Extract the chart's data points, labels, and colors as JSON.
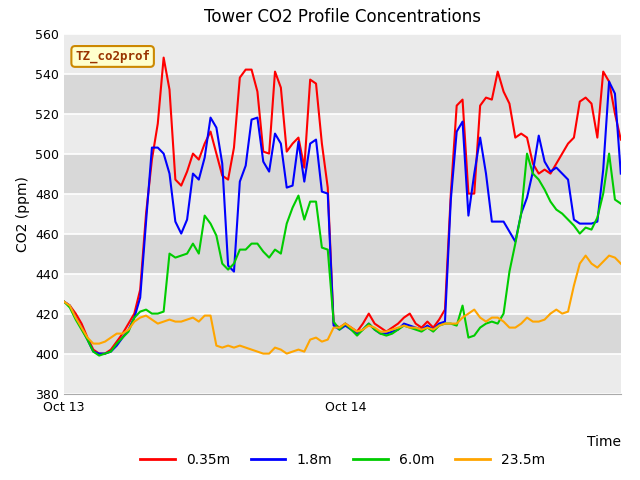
{
  "title": "Tower CO2 Profile Concentrations",
  "ylabel": "CO2 (ppm)",
  "xlabel": "Time",
  "ylim": [
    380,
    560
  ],
  "yticks": [
    380,
    400,
    420,
    440,
    460,
    480,
    500,
    520,
    540,
    560
  ],
  "plot_bg_color": "#d8d8d8",
  "grid_color": "#e8e8e8",
  "legend_label": "TZ_co2prof",
  "series_labels": [
    "0.35m",
    "1.8m",
    "6.0m",
    "23.5m"
  ],
  "series_colors": [
    "#ff0000",
    "#0000ff",
    "#00cc00",
    "#ffa500"
  ],
  "n_points": 96,
  "x_tick_positions": [
    0,
    48,
    95
  ],
  "x_tick_labels": [
    "Oct 13",
    "Oct 14",
    ""
  ],
  "red_data": [
    426,
    424,
    420,
    415,
    408,
    402,
    400,
    400,
    402,
    406,
    410,
    415,
    420,
    432,
    470,
    497,
    515,
    548,
    532,
    487,
    484,
    491,
    500,
    497,
    505,
    511,
    500,
    489,
    487,
    503,
    538,
    542,
    542,
    531,
    501,
    500,
    541,
    533,
    501,
    505,
    508,
    493,
    537,
    535,
    505,
    483,
    415,
    413,
    415,
    413,
    411,
    415,
    420,
    415,
    413,
    411,
    413,
    415,
    418,
    420,
    415,
    413,
    416,
    413,
    417,
    422,
    480,
    524,
    527,
    480,
    480,
    524,
    528,
    527,
    541,
    531,
    525,
    508,
    510,
    508,
    495,
    490,
    492,
    490,
    495,
    500,
    505,
    508,
    526,
    528,
    525,
    508,
    541,
    536,
    520,
    507
  ],
  "blue_data": [
    426,
    424,
    418,
    413,
    407,
    401,
    400,
    400,
    401,
    404,
    408,
    412,
    418,
    428,
    466,
    503,
    503,
    500,
    490,
    466,
    460,
    467,
    490,
    487,
    498,
    518,
    513,
    495,
    444,
    441,
    486,
    494,
    517,
    518,
    496,
    491,
    510,
    505,
    483,
    484,
    506,
    486,
    505,
    507,
    481,
    480,
    414,
    412,
    414,
    412,
    410,
    412,
    415,
    412,
    410,
    410,
    411,
    412,
    415,
    414,
    413,
    412,
    414,
    412,
    415,
    416,
    477,
    511,
    516,
    469,
    490,
    508,
    490,
    466,
    466,
    466,
    461,
    456,
    470,
    478,
    491,
    509,
    496,
    491,
    493,
    490,
    487,
    467,
    465,
    465,
    465,
    466,
    492,
    536,
    530,
    490
  ],
  "green_data": [
    426,
    423,
    417,
    412,
    407,
    401,
    399,
    400,
    401,
    405,
    408,
    411,
    418,
    421,
    422,
    420,
    420,
    421,
    450,
    448,
    449,
    450,
    455,
    450,
    469,
    465,
    459,
    445,
    442,
    445,
    452,
    452,
    455,
    455,
    451,
    448,
    452,
    450,
    465,
    473,
    479,
    467,
    476,
    476,
    453,
    452,
    416,
    412,
    415,
    412,
    409,
    412,
    415,
    412,
    410,
    409,
    410,
    412,
    414,
    413,
    412,
    411,
    413,
    411,
    414,
    415,
    415,
    414,
    424,
    408,
    409,
    413,
    415,
    416,
    415,
    420,
    441,
    455,
    470,
    500,
    490,
    487,
    482,
    476,
    472,
    470,
    467,
    464,
    460,
    463,
    462,
    468,
    480,
    500,
    477,
    475
  ],
  "orange_data": [
    426,
    424,
    418,
    413,
    408,
    405,
    405,
    406,
    408,
    410,
    410,
    412,
    416,
    418,
    419,
    417,
    415,
    416,
    417,
    416,
    416,
    417,
    418,
    416,
    419,
    419,
    404,
    403,
    404,
    403,
    404,
    403,
    402,
    401,
    400,
    400,
    403,
    402,
    400,
    401,
    402,
    401,
    407,
    408,
    406,
    407,
    413,
    413,
    415,
    413,
    411,
    412,
    414,
    413,
    411,
    411,
    412,
    413,
    414,
    413,
    413,
    412,
    413,
    412,
    414,
    415,
    415,
    415,
    418,
    420,
    422,
    418,
    416,
    418,
    418,
    416,
    413,
    413,
    415,
    418,
    416,
    416,
    417,
    420,
    422,
    420,
    421,
    434,
    445,
    449,
    445,
    443,
    446,
    449,
    448,
    445
  ]
}
